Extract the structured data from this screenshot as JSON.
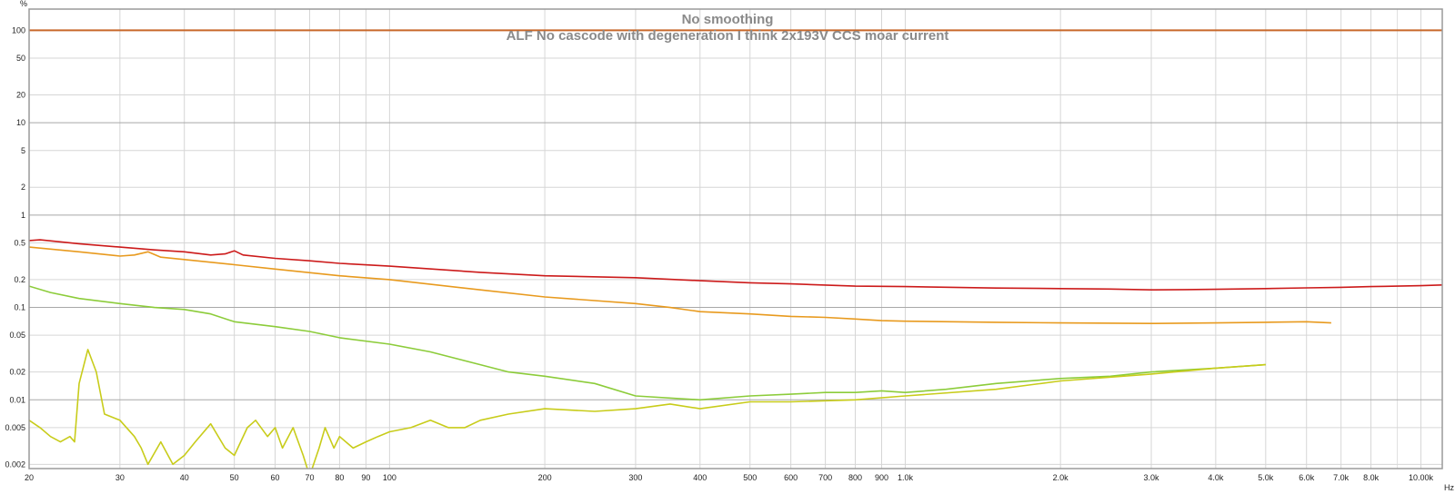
{
  "chart_data": {
    "type": "line",
    "title": "No smoothing",
    "subtitle": "ALF No cascode with degeneration I think 2x193V CCS moar current",
    "y_unit": "%",
    "x_unit": "Hz",
    "x_scale": "log",
    "y_scale": "log",
    "xlim": [
      20,
      11000
    ],
    "ylim": [
      0.0018,
      170
    ],
    "grid": true,
    "x_ticks": [
      {
        "v": 20,
        "label": "20"
      },
      {
        "v": 30,
        "label": "30"
      },
      {
        "v": 40,
        "label": "40"
      },
      {
        "v": 50,
        "label": "50"
      },
      {
        "v": 60,
        "label": "60"
      },
      {
        "v": 70,
        "label": "70"
      },
      {
        "v": 80,
        "label": "80"
      },
      {
        "v": 90,
        "label": "90"
      },
      {
        "v": 100,
        "label": "100"
      },
      {
        "v": 200,
        "label": "200"
      },
      {
        "v": 300,
        "label": "300"
      },
      {
        "v": 400,
        "label": "400"
      },
      {
        "v": 500,
        "label": "500"
      },
      {
        "v": 600,
        "label": "600"
      },
      {
        "v": 700,
        "label": "700"
      },
      {
        "v": 800,
        "label": "800"
      },
      {
        "v": 900,
        "label": "900"
      },
      {
        "v": 1000,
        "label": "1.0k"
      },
      {
        "v": 2000,
        "label": "2.0k"
      },
      {
        "v": 3000,
        "label": "3.0k"
      },
      {
        "v": 4000,
        "label": "4.0k"
      },
      {
        "v": 5000,
        "label": "5.0k"
      },
      {
        "v": 6000,
        "label": "6.0k"
      },
      {
        "v": 7000,
        "label": "7.0k"
      },
      {
        "v": 8000,
        "label": "8.0k"
      },
      {
        "v": 10000,
        "label": "10.00k"
      }
    ],
    "y_ticks": [
      {
        "v": 100,
        "label": "100"
      },
      {
        "v": 50,
        "label": "50"
      },
      {
        "v": 20,
        "label": "20"
      },
      {
        "v": 10,
        "label": "10"
      },
      {
        "v": 5,
        "label": "5"
      },
      {
        "v": 2,
        "label": "2"
      },
      {
        "v": 1,
        "label": "1"
      },
      {
        "v": 0.5,
        "label": "0.5"
      },
      {
        "v": 0.2,
        "label": "0.2"
      },
      {
        "v": 0.1,
        "label": "0.1"
      },
      {
        "v": 0.05,
        "label": "0.05"
      },
      {
        "v": 0.02,
        "label": "0.02"
      },
      {
        "v": 0.01,
        "label": "0.01"
      },
      {
        "v": 0.005,
        "label": "0.005"
      },
      {
        "v": 0.002,
        "label": "0.002"
      }
    ],
    "series": [
      {
        "color": "#c8682a",
        "x": [
          20,
          11000
        ],
        "y": [
          100,
          100
        ]
      },
      {
        "color": "#cc1a1a",
        "x": [
          20,
          21,
          25,
          30,
          35,
          40,
          45,
          48,
          50,
          52,
          60,
          70,
          80,
          100,
          150,
          200,
          300,
          400,
          500,
          600,
          800,
          1000,
          1500,
          2000,
          2500,
          3000,
          3500,
          4000,
          5000,
          6000,
          7000,
          8000,
          9000,
          10000,
          11000
        ],
        "y": [
          0.53,
          0.54,
          0.49,
          0.45,
          0.42,
          0.4,
          0.37,
          0.38,
          0.41,
          0.37,
          0.34,
          0.32,
          0.3,
          0.28,
          0.24,
          0.22,
          0.21,
          0.195,
          0.185,
          0.18,
          0.17,
          0.168,
          0.162,
          0.16,
          0.158,
          0.155,
          0.156,
          0.157,
          0.16,
          0.163,
          0.165,
          0.168,
          0.17,
          0.172,
          0.175
        ]
      },
      {
        "color": "#e89a1e",
        "x": [
          20,
          25,
          30,
          32,
          34,
          36,
          40,
          50,
          60,
          80,
          100,
          150,
          200,
          300,
          350,
          400,
          500,
          600,
          700,
          800,
          900,
          1000,
          1500,
          2000,
          3000,
          4000,
          5000,
          6000,
          6700
        ],
        "y": [
          0.45,
          0.4,
          0.36,
          0.37,
          0.4,
          0.35,
          0.33,
          0.29,
          0.26,
          0.22,
          0.2,
          0.155,
          0.13,
          0.11,
          0.1,
          0.09,
          0.085,
          0.08,
          0.078,
          0.075,
          0.072,
          0.071,
          0.069,
          0.068,
          0.067,
          0.068,
          0.069,
          0.07,
          0.068
        ]
      },
      {
        "color": "#8ccc3a",
        "x": [
          20,
          22,
          25,
          30,
          35,
          40,
          45,
          50,
          60,
          70,
          80,
          100,
          120,
          150,
          170,
          200,
          250,
          300,
          400,
          500,
          600,
          700,
          800,
          900,
          1000,
          1200,
          1500,
          2000,
          2500,
          3000,
          4000,
          5000
        ],
        "y": [
          0.17,
          0.145,
          0.125,
          0.11,
          0.1,
          0.095,
          0.085,
          0.07,
          0.062,
          0.055,
          0.047,
          0.04,
          0.033,
          0.024,
          0.02,
          0.018,
          0.015,
          0.011,
          0.01,
          0.011,
          0.0115,
          0.012,
          0.012,
          0.0125,
          0.012,
          0.013,
          0.015,
          0.017,
          0.018,
          0.02,
          0.022,
          0.024
        ]
      },
      {
        "color": "#c8cc1a",
        "x": [
          20,
          21,
          22,
          23,
          24,
          24.5,
          25,
          26,
          27,
          28,
          30,
          32,
          33,
          34,
          36,
          38,
          40,
          42,
          45,
          48,
          50,
          53,
          55,
          58,
          60,
          62,
          65,
          68,
          70,
          73,
          75,
          78,
          80,
          85,
          90,
          95,
          100,
          110,
          120,
          130,
          140,
          150,
          170,
          200,
          250,
          300,
          350,
          400,
          500,
          600,
          800,
          1000,
          1500,
          2000,
          3000,
          4000,
          5000
        ],
        "y": [
          0.006,
          0.005,
          0.004,
          0.0035,
          0.004,
          0.0035,
          0.015,
          0.035,
          0.02,
          0.007,
          0.006,
          0.004,
          0.003,
          0.002,
          0.0035,
          0.002,
          0.0025,
          0.0035,
          0.0055,
          0.003,
          0.0025,
          0.005,
          0.006,
          0.004,
          0.005,
          0.003,
          0.005,
          0.0025,
          0.0015,
          0.003,
          0.005,
          0.003,
          0.004,
          0.003,
          0.0035,
          0.004,
          0.0045,
          0.005,
          0.006,
          0.005,
          0.005,
          0.006,
          0.007,
          0.008,
          0.0075,
          0.008,
          0.009,
          0.008,
          0.0095,
          0.0095,
          0.01,
          0.011,
          0.013,
          0.016,
          0.019,
          0.022,
          0.024
        ]
      }
    ]
  }
}
